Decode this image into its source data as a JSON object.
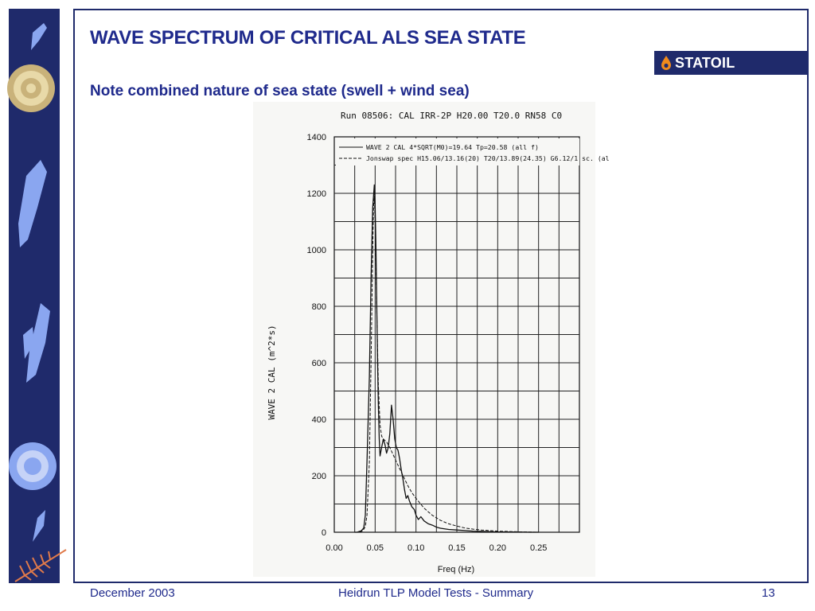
{
  "slide": {
    "title": "WAVE SPECTRUM OF CRITICAL ALS SEA STATE",
    "subtitle": "Note combined nature of sea state (swell  + wind sea)"
  },
  "logo": {
    "text": "STATOIL"
  },
  "footer": {
    "date": "December 2003",
    "center": "Heidrun TLP Model Tests - Summary",
    "page": "13"
  },
  "colors": {
    "brand_navy": "#1f2a6b",
    "title_blue": "#1f2a8c",
    "sidebar_art": "#8aa6f0"
  },
  "chart_data": {
    "type": "line",
    "title": "Run 08506: CAL IRR-2P H20.00 T20.0 RN58 C0",
    "xlabel": "Freq (Hz)",
    "ylabel": "WAVE 2 CAL (m^2*s)",
    "xlim": [
      0.0,
      0.3
    ],
    "ylim": [
      0,
      1400
    ],
    "x_ticks": [
      "0.00",
      "0.05",
      "0.10",
      "0.15",
      "0.20",
      "0.25"
    ],
    "y_ticks": [
      "0",
      "200",
      "400",
      "600",
      "800",
      "1000",
      "1200",
      "1400"
    ],
    "grid": true,
    "legend_position": "top",
    "series": [
      {
        "name": "WAVE 2 CAL   4*SQRT(M0)=19.64 Tp=20.58 (all f)",
        "style": "solid",
        "x": [
          0.025,
          0.028,
          0.03,
          0.033,
          0.036,
          0.038,
          0.04,
          0.043,
          0.045,
          0.047,
          0.049,
          0.05,
          0.051,
          0.052,
          0.053,
          0.054,
          0.055,
          0.056,
          0.058,
          0.06,
          0.062,
          0.064,
          0.066,
          0.068,
          0.07,
          0.072,
          0.074,
          0.076,
          0.078,
          0.08,
          0.082,
          0.084,
          0.086,
          0.088,
          0.09,
          0.092,
          0.095,
          0.098,
          0.1,
          0.103,
          0.106,
          0.11,
          0.115,
          0.12,
          0.125,
          0.13,
          0.14,
          0.15,
          0.16,
          0.17,
          0.18,
          0.19,
          0.2,
          0.22,
          0.24,
          0.25
        ],
        "y": [
          0,
          0,
          2,
          5,
          15,
          60,
          250,
          550,
          900,
          1150,
          1230,
          1160,
          1000,
          800,
          600,
          450,
          330,
          270,
          300,
          330,
          310,
          280,
          300,
          350,
          450,
          400,
          330,
          300,
          290,
          260,
          220,
          190,
          150,
          120,
          130,
          110,
          90,
          80,
          60,
          45,
          55,
          40,
          30,
          25,
          18,
          14,
          10,
          8,
          6,
          4,
          3,
          2,
          1,
          1,
          0,
          0
        ]
      },
      {
        "name": "Jonswap spec H15.06/13.16(20) T20/13.89(24.35) G6.12/1 sc. (al",
        "style": "dashed",
        "x": [
          0.025,
          0.03,
          0.035,
          0.038,
          0.04,
          0.043,
          0.045,
          0.047,
          0.048,
          0.049,
          0.05,
          0.051,
          0.052,
          0.054,
          0.056,
          0.058,
          0.06,
          0.064,
          0.068,
          0.072,
          0.076,
          0.08,
          0.085,
          0.09,
          0.095,
          0.1,
          0.11,
          0.12,
          0.13,
          0.14,
          0.15,
          0.16,
          0.17,
          0.18,
          0.2,
          0.22,
          0.25
        ],
        "y": [
          0,
          0,
          5,
          20,
          60,
          250,
          600,
          1000,
          1150,
          1190,
          1100,
          950,
          780,
          520,
          380,
          340,
          330,
          320,
          300,
          275,
          250,
          225,
          195,
          165,
          140,
          120,
          85,
          60,
          42,
          30,
          22,
          15,
          11,
          8,
          4,
          2,
          0
        ]
      }
    ]
  }
}
